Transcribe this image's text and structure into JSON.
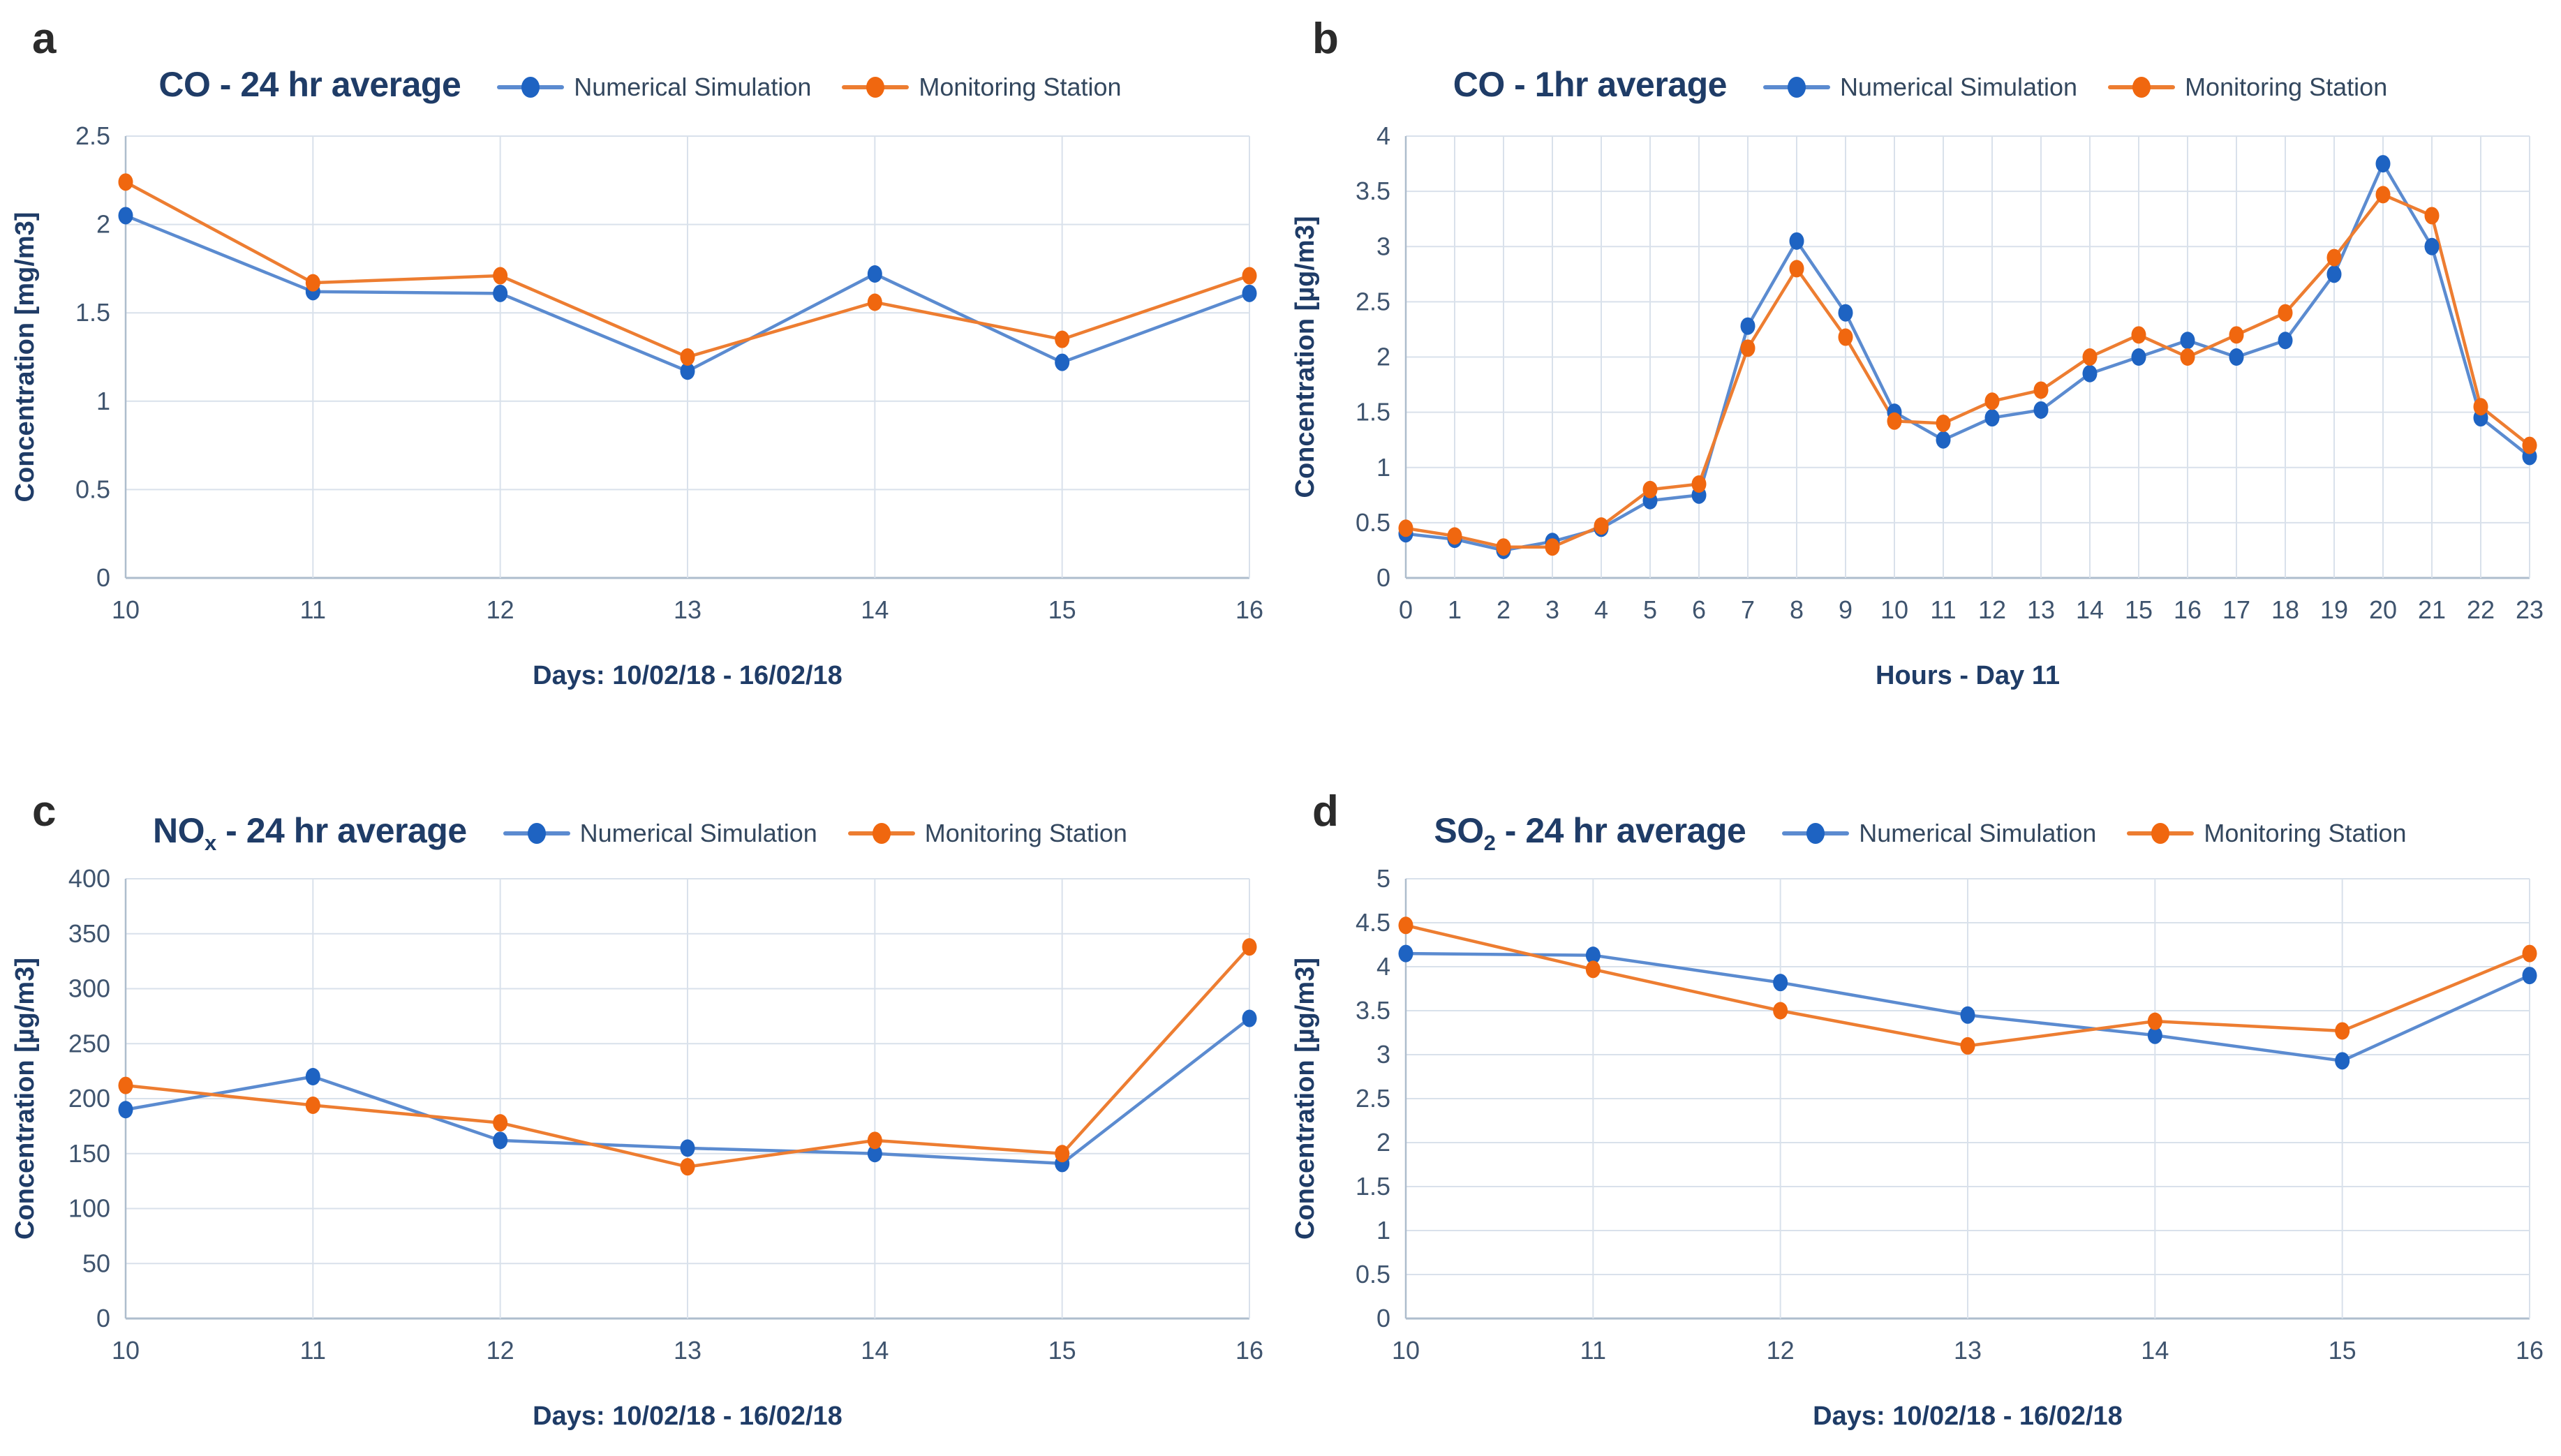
{
  "figure": {
    "background": "#ffffff",
    "colors": {
      "series_blue_line": "#5B8BD0",
      "series_blue_marker": "#1E63C2",
      "series_orange_line": "#ED7D31",
      "series_orange_marker": "#F0670F",
      "gridline": "#D9E1EB",
      "plot_border": "#D9E1EB",
      "axis_line": "#AEBDCD",
      "tick_text": "#3F546E",
      "title_text": "#1F3C67",
      "panel_letter_text": "#2B2B2B"
    }
  },
  "chart_data": [
    {
      "letter": "a",
      "type": "line",
      "title_main": "CO",
      "title_sub": "",
      "title_rest": " - 24 hr average",
      "xlabel": "Days: 10/02/18 - 16/02/18",
      "ylabel": "Concentration [mg/m3]",
      "x": [
        10,
        11,
        12,
        13,
        14,
        15,
        16
      ],
      "ylim": [
        0,
        2.5
      ],
      "ystep": 0.5,
      "grid": true,
      "legend_position": "top-right",
      "series": [
        {
          "name": "Numerical Simulation",
          "color_key": "blue",
          "values": [
            2.05,
            1.62,
            1.61,
            1.17,
            1.72,
            1.22,
            1.61
          ]
        },
        {
          "name": "Monitoring Station",
          "color_key": "orange",
          "values": [
            2.24,
            1.67,
            1.71,
            1.25,
            1.56,
            1.35,
            1.71
          ]
        }
      ]
    },
    {
      "letter": "b",
      "type": "line",
      "title_main": "CO",
      "title_sub": "",
      "title_rest": " - 1hr average",
      "xlabel": "Hours - Day 11",
      "ylabel": "Concentration [µg/m3]",
      "x": [
        0,
        1,
        2,
        3,
        4,
        5,
        6,
        7,
        8,
        9,
        10,
        11,
        12,
        13,
        14,
        15,
        16,
        17,
        18,
        19,
        20,
        21,
        22,
        23
      ],
      "ylim": [
        0,
        4
      ],
      "ystep": 0.5,
      "grid": true,
      "legend_position": "top-right",
      "series": [
        {
          "name": "Numerical Simulation",
          "color_key": "blue",
          "values": [
            0.4,
            0.35,
            0.25,
            0.33,
            0.45,
            0.7,
            0.75,
            2.28,
            3.05,
            2.4,
            1.5,
            1.25,
            1.45,
            1.52,
            1.85,
            2.0,
            2.15,
            2.0,
            2.15,
            2.75,
            3.75,
            3.0,
            1.45,
            1.1
          ]
        },
        {
          "name": "Monitoring Station",
          "color_key": "orange",
          "values": [
            0.45,
            0.38,
            0.28,
            0.28,
            0.47,
            0.8,
            0.85,
            2.08,
            2.8,
            2.18,
            1.42,
            1.4,
            1.6,
            1.7,
            2.0,
            2.2,
            2.0,
            2.2,
            2.4,
            2.9,
            3.47,
            3.28,
            1.55,
            1.2
          ]
        }
      ]
    },
    {
      "letter": "c",
      "type": "line",
      "title_main": "NO",
      "title_sub": "x",
      "title_rest": " - 24 hr average",
      "xlabel": "Days: 10/02/18 - 16/02/18",
      "ylabel": "Concentration [µg/m3]",
      "x": [
        10,
        11,
        12,
        13,
        14,
        15,
        16
      ],
      "ylim": [
        0,
        400
      ],
      "ystep": 50,
      "grid": true,
      "legend_position": "top-right",
      "series": [
        {
          "name": "Numerical Simulation",
          "color_key": "blue",
          "values": [
            190,
            220,
            162,
            155,
            150,
            141,
            273
          ]
        },
        {
          "name": "Monitoring Station",
          "color_key": "orange",
          "values": [
            212,
            194,
            178,
            138,
            162,
            150,
            338
          ]
        }
      ]
    },
    {
      "letter": "d",
      "type": "line",
      "title_main": "SO",
      "title_sub": "2",
      "title_rest": " - 24 hr average",
      "xlabel": "Days: 10/02/18 - 16/02/18",
      "ylabel": "Concentration [µg/m3]",
      "x": [
        10,
        11,
        12,
        13,
        14,
        15,
        16
      ],
      "ylim": [
        0,
        5
      ],
      "ystep": 0.5,
      "grid": true,
      "legend_position": "top-right",
      "series": [
        {
          "name": "Numerical Simulation",
          "color_key": "blue",
          "values": [
            4.15,
            4.13,
            3.82,
            3.45,
            3.22,
            2.93,
            3.9
          ]
        },
        {
          "name": "Monitoring Station",
          "color_key": "orange",
          "values": [
            4.47,
            3.97,
            3.5,
            3.1,
            3.38,
            3.27,
            4.15
          ]
        }
      ]
    }
  ]
}
